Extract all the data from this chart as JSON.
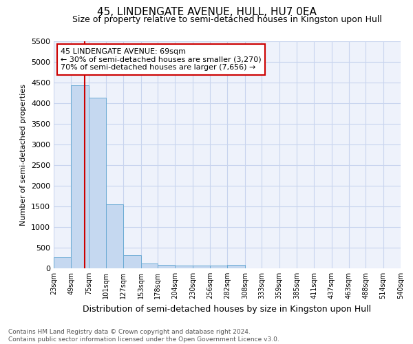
{
  "title": "45, LINDENGATE AVENUE, HULL, HU7 0EA",
  "subtitle": "Size of property relative to semi-detached houses in Kingston upon Hull",
  "xlabel": "Distribution of semi-detached houses by size in Kingston upon Hull",
  "ylabel": "Number of semi-detached properties",
  "footer_line1": "Contains HM Land Registry data © Crown copyright and database right 2024.",
  "footer_line2": "Contains public sector information licensed under the Open Government Licence v3.0.",
  "annotation_line1": "45 LINDENGATE AVENUE: 69sqm",
  "annotation_line2": "← 30% of semi-detached houses are smaller (3,270)",
  "annotation_line3": "70% of semi-detached houses are larger (7,656) →",
  "property_size": 69,
  "bin_edges": [
    23,
    49,
    75,
    101,
    127,
    153,
    178,
    204,
    230,
    256,
    282,
    308,
    333,
    359,
    385,
    411,
    437,
    463,
    488,
    514,
    540
  ],
  "bar_heights": [
    270,
    4430,
    4140,
    1555,
    320,
    125,
    80,
    75,
    65,
    60,
    80,
    0,
    0,
    0,
    0,
    0,
    0,
    0,
    0,
    0
  ],
  "bar_color": "#c5d8f0",
  "bar_edge_color": "#6aaad4",
  "red_line_color": "#cc0000",
  "ylim": [
    0,
    5500
  ],
  "yticks": [
    0,
    500,
    1000,
    1500,
    2000,
    2500,
    3000,
    3500,
    4000,
    4500,
    5000,
    5500
  ],
  "bg_color": "#eef2fb",
  "grid_color": "#c8d4ee",
  "annotation_box_color": "#ffffff",
  "annotation_box_edge": "#cc0000",
  "title_fontsize": 11,
  "subtitle_fontsize": 9,
  "xlabel_fontsize": 9,
  "ylabel_fontsize": 8,
  "footer_fontsize": 6.5
}
